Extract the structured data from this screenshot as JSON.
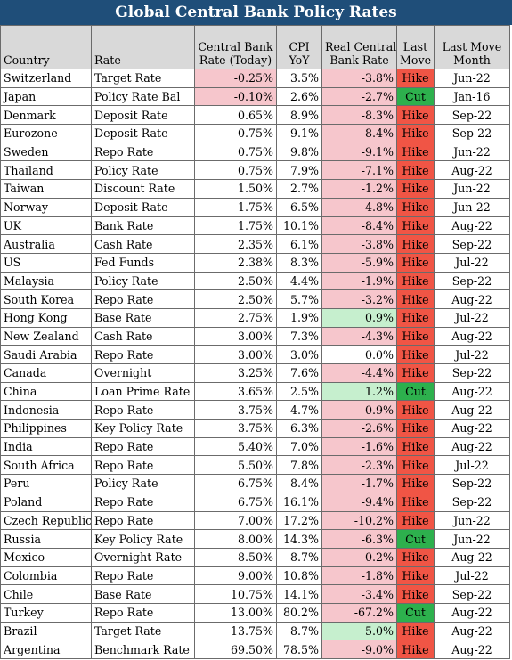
{
  "title": "Global Central Bank Policy Rates",
  "headers": {
    "country": "Country",
    "rate": "Rate",
    "cb_rate_1": "Central Bank",
    "cb_rate_2": "Rate (Today)",
    "cpi_1": "CPI",
    "cpi_2": "YoY",
    "real_1": "Real Central",
    "real_2": "Bank Rate",
    "last_1": "Last",
    "last_2": "Move",
    "month_1": "Last Move",
    "month_2": "Month"
  },
  "colors": {
    "title_bg": "#1f4e79",
    "header_bg": "#d9d9d9",
    "negative_bg": "#f6c6cc",
    "positive_bg": "#c6efce",
    "hike_bg": "#f05545",
    "cut_bg": "#2db04d"
  },
  "rows": [
    {
      "country": "Switzerland",
      "rate": "Target Rate",
      "cb": "-0.25%",
      "cpi": "3.5%",
      "real": "-3.8%",
      "move": "Hike",
      "month": "Jun-22"
    },
    {
      "country": "Japan",
      "rate": "Policy Rate Bal",
      "cb": "-0.10%",
      "cpi": "2.6%",
      "real": "-2.7%",
      "move": "Cut",
      "month": "Jan-16"
    },
    {
      "country": "Denmark",
      "rate": "Deposit Rate",
      "cb": "0.65%",
      "cpi": "8.9%",
      "real": "-8.3%",
      "move": "Hike",
      "month": "Sep-22"
    },
    {
      "country": "Eurozone",
      "rate": "Deposit Rate",
      "cb": "0.75%",
      "cpi": "9.1%",
      "real": "-8.4%",
      "move": "Hike",
      "month": "Sep-22"
    },
    {
      "country": "Sweden",
      "rate": "Repo Rate",
      "cb": "0.75%",
      "cpi": "9.8%",
      "real": "-9.1%",
      "move": "Hike",
      "month": "Jun-22"
    },
    {
      "country": "Thailand",
      "rate": "Policy Rate",
      "cb": "0.75%",
      "cpi": "7.9%",
      "real": "-7.1%",
      "move": "Hike",
      "month": "Aug-22"
    },
    {
      "country": "Taiwan",
      "rate": "Discount Rate",
      "cb": "1.50%",
      "cpi": "2.7%",
      "real": "-1.2%",
      "move": "Hike",
      "month": "Jun-22"
    },
    {
      "country": "Norway",
      "rate": "Deposit Rate",
      "cb": "1.75%",
      "cpi": "6.5%",
      "real": "-4.8%",
      "move": "Hike",
      "month": "Jun-22"
    },
    {
      "country": "UK",
      "rate": "Bank Rate",
      "cb": "1.75%",
      "cpi": "10.1%",
      "real": "-8.4%",
      "move": "Hike",
      "month": "Aug-22"
    },
    {
      "country": "Australia",
      "rate": "Cash Rate",
      "cb": "2.35%",
      "cpi": "6.1%",
      "real": "-3.8%",
      "move": "Hike",
      "month": "Sep-22"
    },
    {
      "country": "US",
      "rate": "Fed Funds",
      "cb": "2.38%",
      "cpi": "8.3%",
      "real": "-5.9%",
      "move": "Hike",
      "month": "Jul-22"
    },
    {
      "country": "Malaysia",
      "rate": "Policy Rate",
      "cb": "2.50%",
      "cpi": "4.4%",
      "real": "-1.9%",
      "move": "Hike",
      "month": "Sep-22"
    },
    {
      "country": "South Korea",
      "rate": "Repo Rate",
      "cb": "2.50%",
      "cpi": "5.7%",
      "real": "-3.2%",
      "move": "Hike",
      "month": "Aug-22"
    },
    {
      "country": "Hong Kong",
      "rate": "Base Rate",
      "cb": "2.75%",
      "cpi": "1.9%",
      "real": "0.9%",
      "move": "Hike",
      "month": "Jul-22"
    },
    {
      "country": "New Zealand",
      "rate": "Cash Rate",
      "cb": "3.00%",
      "cpi": "7.3%",
      "real": "-4.3%",
      "move": "Hike",
      "month": "Aug-22"
    },
    {
      "country": "Saudi Arabia",
      "rate": "Repo Rate",
      "cb": "3.00%",
      "cpi": "3.0%",
      "real": "0.0%",
      "move": "Hike",
      "month": "Jul-22"
    },
    {
      "country": "Canada",
      "rate": "Overnight",
      "cb": "3.25%",
      "cpi": "7.6%",
      "real": "-4.4%",
      "move": "Hike",
      "month": "Sep-22"
    },
    {
      "country": "China",
      "rate": "Loan Prime Rate",
      "cb": "3.65%",
      "cpi": "2.5%",
      "real": "1.2%",
      "move": "Cut",
      "month": "Aug-22"
    },
    {
      "country": "Indonesia",
      "rate": "Repo Rate",
      "cb": "3.75%",
      "cpi": "4.7%",
      "real": "-0.9%",
      "move": "Hike",
      "month": "Aug-22"
    },
    {
      "country": "Philippines",
      "rate": "Key Policy Rate",
      "cb": "3.75%",
      "cpi": "6.3%",
      "real": "-2.6%",
      "move": "Hike",
      "month": "Aug-22"
    },
    {
      "country": "India",
      "rate": "Repo Rate",
      "cb": "5.40%",
      "cpi": "7.0%",
      "real": "-1.6%",
      "move": "Hike",
      "month": "Aug-22"
    },
    {
      "country": "South Africa",
      "rate": "Repo Rate",
      "cb": "5.50%",
      "cpi": "7.8%",
      "real": "-2.3%",
      "move": "Hike",
      "month": "Jul-22"
    },
    {
      "country": "Peru",
      "rate": "Policy Rate",
      "cb": "6.75%",
      "cpi": "8.4%",
      "real": "-1.7%",
      "move": "Hike",
      "month": "Sep-22"
    },
    {
      "country": "Poland",
      "rate": "Repo Rate",
      "cb": "6.75%",
      "cpi": "16.1%",
      "real": "-9.4%",
      "move": "Hike",
      "month": "Sep-22"
    },
    {
      "country": "Czech Republic",
      "rate": "Repo Rate",
      "cb": "7.00%",
      "cpi": "17.2%",
      "real": "-10.2%",
      "move": "Hike",
      "month": "Jun-22"
    },
    {
      "country": "Russia",
      "rate": "Key Policy Rate",
      "cb": "8.00%",
      "cpi": "14.3%",
      "real": "-6.3%",
      "move": "Cut",
      "month": "Jun-22"
    },
    {
      "country": "Mexico",
      "rate": "Overnight Rate",
      "cb": "8.50%",
      "cpi": "8.7%",
      "real": "-0.2%",
      "move": "Hike",
      "month": "Aug-22"
    },
    {
      "country": "Colombia",
      "rate": "Repo Rate",
      "cb": "9.00%",
      "cpi": "10.8%",
      "real": "-1.8%",
      "move": "Hike",
      "month": "Jul-22"
    },
    {
      "country": "Chile",
      "rate": "Base Rate",
      "cb": "10.75%",
      "cpi": "14.1%",
      "real": "-3.4%",
      "move": "Hike",
      "month": "Sep-22"
    },
    {
      "country": "Turkey",
      "rate": "Repo Rate",
      "cb": "13.00%",
      "cpi": "80.2%",
      "real": "-67.2%",
      "move": "Cut",
      "month": "Aug-22"
    },
    {
      "country": "Brazil",
      "rate": "Target Rate",
      "cb": "13.75%",
      "cpi": "8.7%",
      "real": "5.0%",
      "move": "Hike",
      "month": "Aug-22"
    },
    {
      "country": "Argentina",
      "rate": "Benchmark Rate",
      "cb": "69.50%",
      "cpi": "78.5%",
      "real": "-9.0%",
      "move": "Hike",
      "month": "Aug-22"
    }
  ]
}
